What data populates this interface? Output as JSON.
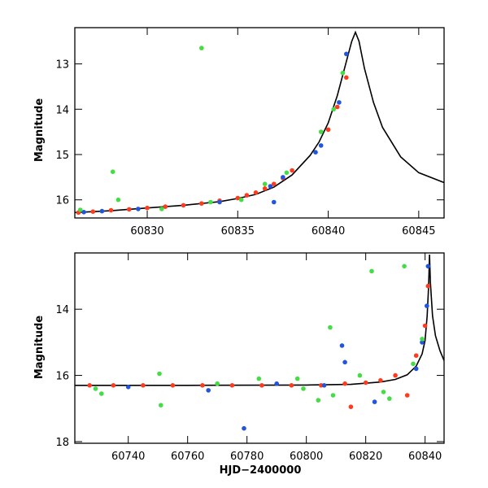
{
  "chart_data": [
    {
      "type": "scatter",
      "ylabel": "Magnitude",
      "xlabel": "",
      "xlim": [
        60826,
        60846.4
      ],
      "ylim": [
        16.4,
        12.2
      ],
      "y_inverted": true,
      "xticks": [
        60830,
        60835,
        60840,
        60845
      ],
      "yticks": [
        13,
        14,
        15,
        16
      ],
      "series": [
        {
          "color": "#ff3b1f",
          "x": [
            60826.2,
            60827,
            60828,
            60829,
            60830,
            60831,
            60832,
            60833,
            60834,
            60835,
            60835.5,
            60836,
            60836.5,
            60837,
            60837.5,
            60838,
            60840,
            60840.5,
            60841
          ],
          "y": [
            16.28,
            16.26,
            16.23,
            16.21,
            16.18,
            16.15,
            16.12,
            16.08,
            16.02,
            15.96,
            15.9,
            15.84,
            15.75,
            15.65,
            15.52,
            15.35,
            14.45,
            13.95,
            13.3
          ]
        },
        {
          "color": "#2255dd",
          "x": [
            60826.5,
            60827.5,
            60829.5,
            60834,
            60836.8,
            60837,
            60837.5,
            60839.3,
            60839.6,
            60840.6,
            60841
          ],
          "y": [
            16.27,
            16.25,
            16.2,
            16.05,
            15.7,
            16.05,
            15.5,
            14.95,
            14.8,
            13.85,
            12.78
          ]
        },
        {
          "color": "#44dd44",
          "x": [
            60826.3,
            60828.1,
            60828.4,
            60830.8,
            60833,
            60833.5,
            60835.2,
            60836.5,
            60837.7,
            60839.6,
            60840.3,
            60840.8
          ],
          "y": [
            16.22,
            15.38,
            16.0,
            16.2,
            12.65,
            16.05,
            16.0,
            15.65,
            15.4,
            14.5,
            14.0,
            13.2
          ]
        }
      ],
      "model_curve": {
        "x": [
          60826,
          60828,
          60830,
          60832,
          60834,
          60835,
          60836,
          60837,
          60838,
          60839,
          60839.5,
          60840,
          60840.5,
          60841,
          60841.3,
          60841.5,
          60841.7,
          60842,
          60842.5,
          60843,
          60844,
          60845,
          60846.4
        ],
        "y": [
          16.28,
          16.24,
          16.18,
          16.12,
          16.04,
          15.97,
          15.88,
          15.72,
          15.45,
          15.02,
          14.72,
          14.3,
          13.7,
          12.95,
          12.5,
          12.3,
          12.5,
          13.1,
          13.85,
          14.4,
          15.05,
          15.4,
          15.62
        ]
      }
    },
    {
      "type": "scatter",
      "ylabel": "Magnitude",
      "xlabel": "HJD−2400000",
      "xlim": [
        60722,
        60846.4
      ],
      "ylim": [
        18.05,
        12.3
      ],
      "y_inverted": true,
      "xticks": [
        60740,
        60760,
        60780,
        60800,
        60820,
        60840
      ],
      "yticks": [
        14,
        16,
        18
      ],
      "series": [
        {
          "color": "#ff3b1f",
          "x": [
            60727,
            60735,
            60745,
            60755,
            60765,
            60775,
            60785,
            60795,
            60805,
            60813,
            60815,
            60820,
            60825,
            60830,
            60834,
            60837,
            60840,
            60841
          ],
          "y": [
            16.3,
            16.3,
            16.3,
            16.3,
            16.3,
            16.3,
            16.3,
            16.3,
            16.3,
            16.25,
            16.95,
            16.22,
            16.15,
            16.0,
            16.6,
            15.4,
            14.5,
            13.3
          ]
        },
        {
          "color": "#2255dd",
          "x": [
            60740,
            60767,
            60779,
            60790,
            60806,
            60812,
            60813,
            60823,
            60837,
            60839,
            60840.6,
            60841
          ],
          "y": [
            16.35,
            16.45,
            17.6,
            16.25,
            16.3,
            15.1,
            15.6,
            16.8,
            15.8,
            15.0,
            13.9,
            12.7
          ]
        },
        {
          "color": "#44dd44",
          "x": [
            60729,
            60731,
            60750.5,
            60751,
            60770,
            60784,
            60797,
            60799,
            60804,
            60808,
            60809,
            60818,
            60822,
            60826,
            60828,
            60833,
            60836,
            60839
          ],
          "y": [
            16.4,
            16.55,
            15.95,
            16.9,
            16.25,
            16.1,
            16.1,
            16.4,
            16.75,
            14.55,
            16.6,
            16.0,
            12.85,
            16.5,
            16.7,
            12.7,
            15.65,
            14.9
          ]
        }
      ],
      "model_curve": {
        "x": [
          60722,
          60760,
          60800,
          60815,
          60825,
          60830,
          60834,
          60837,
          60839,
          60840,
          60840.7,
          60841.2,
          60841.5,
          60841.8,
          60842.5,
          60843.5,
          60845,
          60846.4
        ],
        "y": [
          16.3,
          16.3,
          16.29,
          16.27,
          16.2,
          16.12,
          15.98,
          15.72,
          15.35,
          14.95,
          14.2,
          13.3,
          12.35,
          13.2,
          14.2,
          14.8,
          15.25,
          15.55
        ]
      }
    }
  ]
}
